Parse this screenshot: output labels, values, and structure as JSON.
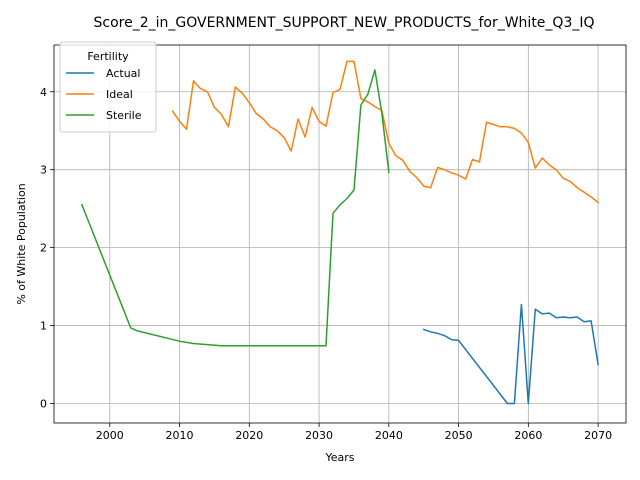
{
  "chart_data": {
    "type": "line",
    "title": "Score_2_in_GOVERNMENT_SUPPORT_NEW_PRODUCTS_for_White_Q3_IQ",
    "xlabel": "Years",
    "ylabel": "% of White Population",
    "xlim": [
      1992,
      2074
    ],
    "ylim": [
      -0.25,
      4.6
    ],
    "xticks": [
      2000,
      2010,
      2020,
      2030,
      2040,
      2050,
      2060,
      2070
    ],
    "yticks": [
      0,
      1,
      2,
      3,
      4
    ],
    "grid": true,
    "legend": {
      "title": "Fertility",
      "placement": "top-left"
    },
    "series": [
      {
        "name": "Actual",
        "color": "#1f77b4",
        "points": [
          [
            2045,
            0.95
          ],
          [
            2046,
            0.92
          ],
          [
            2047,
            0.9
          ],
          [
            2048,
            0.87
          ],
          [
            2049,
            0.82
          ],
          [
            2050,
            0.81
          ],
          [
            2057,
            0.0
          ],
          [
            2058,
            0.0
          ],
          [
            2059,
            1.27
          ],
          [
            2060,
            0.0
          ],
          [
            2061,
            1.21
          ],
          [
            2062,
            1.15
          ],
          [
            2063,
            1.16
          ],
          [
            2064,
            1.1
          ],
          [
            2065,
            1.11
          ],
          [
            2066,
            1.1
          ],
          [
            2067,
            1.11
          ],
          [
            2068,
            1.05
          ],
          [
            2069,
            1.06
          ],
          [
            2070,
            0.5
          ]
        ]
      },
      {
        "name": "Ideal",
        "color": "#ff7f0e",
        "points": [
          [
            2009,
            3.75
          ],
          [
            2010,
            3.62
          ],
          [
            2011,
            3.52
          ],
          [
            2012,
            4.14
          ],
          [
            2013,
            4.04
          ],
          [
            2014,
            4.0
          ],
          [
            2015,
            3.8
          ],
          [
            2016,
            3.71
          ],
          [
            2017,
            3.55
          ],
          [
            2018,
            4.06
          ],
          [
            2019,
            3.98
          ],
          [
            2020,
            3.86
          ],
          [
            2021,
            3.72
          ],
          [
            2022,
            3.65
          ],
          [
            2023,
            3.55
          ],
          [
            2024,
            3.5
          ],
          [
            2025,
            3.41
          ],
          [
            2026,
            3.24
          ],
          [
            2027,
            3.65
          ],
          [
            2028,
            3.42
          ],
          [
            2029,
            3.8
          ],
          [
            2030,
            3.62
          ],
          [
            2031,
            3.56
          ],
          [
            2032,
            3.99
          ],
          [
            2033,
            4.03
          ],
          [
            2034,
            4.39
          ],
          [
            2035,
            4.39
          ],
          [
            2036,
            3.91
          ],
          [
            2037,
            3.87
          ],
          [
            2038,
            3.81
          ],
          [
            2039,
            3.76
          ],
          [
            2040,
            3.34
          ],
          [
            2041,
            3.18
          ],
          [
            2042,
            3.12
          ],
          [
            2043,
            2.98
          ],
          [
            2044,
            2.9
          ],
          [
            2045,
            2.79
          ],
          [
            2046,
            2.77
          ],
          [
            2047,
            3.03
          ],
          [
            2048,
            3.0
          ],
          [
            2049,
            2.96
          ],
          [
            2050,
            2.93
          ],
          [
            2051,
            2.88
          ],
          [
            2052,
            3.13
          ],
          [
            2053,
            3.1
          ],
          [
            2054,
            3.61
          ],
          [
            2055,
            3.58
          ],
          [
            2056,
            3.55
          ],
          [
            2057,
            3.55
          ],
          [
            2058,
            3.53
          ],
          [
            2059,
            3.47
          ],
          [
            2060,
            3.35
          ],
          [
            2061,
            3.02
          ],
          [
            2062,
            3.15
          ],
          [
            2063,
            3.06
          ],
          [
            2064,
            3.0
          ],
          [
            2065,
            2.89
          ],
          [
            2066,
            2.85
          ],
          [
            2067,
            2.77
          ],
          [
            2068,
            2.71
          ],
          [
            2069,
            2.65
          ],
          [
            2070,
            2.58
          ]
        ]
      },
      {
        "name": "Sterile",
        "color": "#2ca02c",
        "points": [
          [
            1996,
            2.55
          ],
          [
            2003,
            0.97
          ],
          [
            2004,
            0.93
          ],
          [
            2005,
            0.91
          ],
          [
            2010,
            0.8
          ],
          [
            2012,
            0.77
          ],
          [
            2016,
            0.74
          ],
          [
            2031,
            0.74
          ],
          [
            2032,
            2.44
          ],
          [
            2033,
            2.55
          ],
          [
            2034,
            2.63
          ],
          [
            2035,
            2.74
          ],
          [
            2036,
            3.83
          ],
          [
            2037,
            3.97
          ],
          [
            2038,
            4.28
          ],
          [
            2039,
            3.72
          ],
          [
            2040,
            2.97
          ]
        ]
      }
    ]
  }
}
